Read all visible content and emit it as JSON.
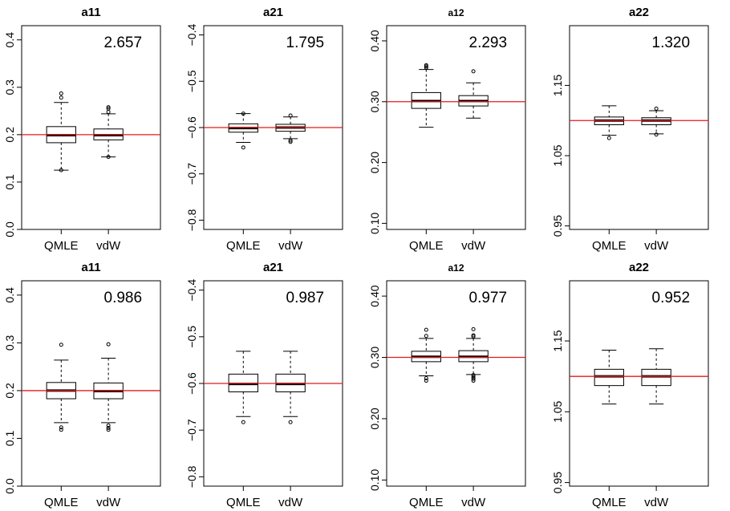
{
  "figure": {
    "type": "boxplot grid"
  },
  "colors": {
    "reference_line": "#e41a1c",
    "box_stroke": "#000000",
    "median": "#000000"
  },
  "chart_data": [
    {
      "type": "boxplot",
      "title": "a11",
      "annotation": "2.657",
      "categories": [
        "QMLE",
        "vdW"
      ],
      "ylim": [
        0.0,
        0.43
      ],
      "yticks": [
        "0.0",
        "0.1",
        "0.2",
        "0.3",
        "0.4"
      ],
      "reference": 0.2,
      "series": [
        {
          "name": "QMLE",
          "min": 0.125,
          "q1": 0.183,
          "median": 0.199,
          "q3": 0.217,
          "max": 0.268,
          "outliers": [
            0.125,
            0.278,
            0.287
          ]
        },
        {
          "name": "vdW",
          "min": 0.153,
          "q1": 0.189,
          "median": 0.199,
          "q3": 0.212,
          "max": 0.244,
          "outliers": [
            0.153,
            0.248,
            0.255,
            0.258
          ]
        }
      ]
    },
    {
      "type": "boxplot",
      "title": "a21",
      "annotation": "1.795",
      "categories": [
        "QMLE",
        "vdW"
      ],
      "ylim": [
        -0.82,
        -0.38
      ],
      "yticks": [
        "-0.8",
        "-0.7",
        "-0.6",
        "-0.5",
        "-0.4"
      ],
      "reference": -0.6,
      "series": [
        {
          "name": "QMLE",
          "min": -0.632,
          "q1": -0.61,
          "median": -0.601,
          "q3": -0.592,
          "max": -0.57,
          "outliers": [
            -0.57,
            -0.643
          ]
        },
        {
          "name": "vdW",
          "min": -0.624,
          "q1": -0.608,
          "median": -0.6,
          "q3": -0.593,
          "max": -0.577,
          "outliers": [
            -0.574,
            -0.628,
            -0.631
          ]
        }
      ]
    },
    {
      "type": "boxplot",
      "title": "a12",
      "annotation": "2.293",
      "categories": [
        "QMLE",
        "vdW"
      ],
      "ylim": [
        0.09,
        0.425
      ],
      "yticks": [
        "0.10",
        "0.20",
        "0.30",
        "0.40"
      ],
      "reference": 0.3,
      "series": [
        {
          "name": "QMLE",
          "min": 0.258,
          "q1": 0.289,
          "median": 0.301,
          "q3": 0.315,
          "max": 0.353,
          "outliers": [
            0.356,
            0.358,
            0.36
          ]
        },
        {
          "name": "vdW",
          "min": 0.273,
          "q1": 0.293,
          "median": 0.301,
          "q3": 0.31,
          "max": 0.331,
          "outliers": [
            0.35
          ]
        }
      ]
    },
    {
      "type": "boxplot",
      "title": "a22",
      "annotation": "1.320",
      "categories": [
        "QMLE",
        "vdW"
      ],
      "ylim": [
        0.945,
        1.235
      ],
      "yticks": [
        "0.95",
        "1.05",
        "1.15"
      ],
      "reference": 1.1,
      "series": [
        {
          "name": "QMLE",
          "min": 1.079,
          "q1": 1.094,
          "median": 1.1,
          "q3": 1.105,
          "max": 1.121,
          "outliers": [
            1.075
          ]
        },
        {
          "name": "vdW",
          "min": 1.081,
          "q1": 1.094,
          "median": 1.1,
          "q3": 1.104,
          "max": 1.114,
          "outliers": [
            1.08,
            1.117
          ]
        }
      ]
    },
    {
      "type": "boxplot",
      "title": "a11",
      "annotation": "0.986",
      "categories": [
        "QMLE",
        "vdW"
      ],
      "ylim": [
        0.0,
        0.43
      ],
      "yticks": [
        "0.0",
        "0.1",
        "0.2",
        "0.3",
        "0.4"
      ],
      "reference": 0.2,
      "series": [
        {
          "name": "QMLE",
          "min": 0.133,
          "q1": 0.183,
          "median": 0.2,
          "q3": 0.217,
          "max": 0.264,
          "outliers": [
            0.123,
            0.118,
            0.296
          ]
        },
        {
          "name": "vdW",
          "min": 0.133,
          "q1": 0.183,
          "median": 0.199,
          "q3": 0.216,
          "max": 0.268,
          "outliers": [
            0.127,
            0.122,
            0.118,
            0.297
          ]
        }
      ]
    },
    {
      "type": "boxplot",
      "title": "a21",
      "annotation": "0.987",
      "categories": [
        "QMLE",
        "vdW"
      ],
      "ylim": [
        -0.82,
        -0.38
      ],
      "yticks": [
        "-0.8",
        "-0.7",
        "-0.6",
        "-0.5",
        "-0.4"
      ],
      "reference": -0.6,
      "series": [
        {
          "name": "QMLE",
          "min": -0.671,
          "q1": -0.618,
          "median": -0.601,
          "q3": -0.58,
          "max": -0.531,
          "outliers": [
            -0.683
          ]
        },
        {
          "name": "vdW",
          "min": -0.671,
          "q1": -0.618,
          "median": -0.601,
          "q3": -0.58,
          "max": -0.531,
          "outliers": [
            -0.683
          ]
        }
      ]
    },
    {
      "type": "boxplot",
      "title": "a12",
      "annotation": "0.977",
      "categories": [
        "QMLE",
        "vdW"
      ],
      "ylim": [
        0.09,
        0.425
      ],
      "yticks": [
        "0.10",
        "0.20",
        "0.30",
        "0.40"
      ],
      "reference": 0.3,
      "series": [
        {
          "name": "QMLE",
          "min": 0.27,
          "q1": 0.293,
          "median": 0.301,
          "q3": 0.31,
          "max": 0.331,
          "outliers": [
            0.262,
            0.266,
            0.335,
            0.345
          ]
        },
        {
          "name": "vdW",
          "min": 0.272,
          "q1": 0.293,
          "median": 0.301,
          "q3": 0.311,
          "max": 0.331,
          "outliers": [
            0.262,
            0.265,
            0.268,
            0.271,
            0.334,
            0.336,
            0.346
          ]
        }
      ]
    },
    {
      "type": "boxplot",
      "title": "a22",
      "annotation": "0.952",
      "categories": [
        "QMLE",
        "vdW"
      ],
      "ylim": [
        0.945,
        1.235
      ],
      "yticks": [
        "0.95",
        "1.05",
        "1.15"
      ],
      "reference": 1.1,
      "series": [
        {
          "name": "QMLE",
          "min": 1.061,
          "q1": 1.087,
          "median": 1.1,
          "q3": 1.11,
          "max": 1.137,
          "outliers": []
        },
        {
          "name": "vdW",
          "min": 1.061,
          "q1": 1.087,
          "median": 1.1,
          "q3": 1.11,
          "max": 1.139,
          "outliers": []
        }
      ]
    }
  ]
}
